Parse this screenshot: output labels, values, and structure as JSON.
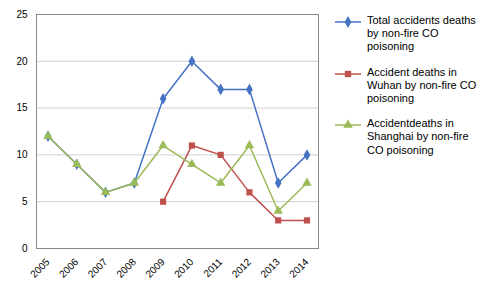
{
  "chart_data": {
    "type": "line",
    "x": [
      2005,
      2006,
      2007,
      2008,
      2009,
      2010,
      2011,
      2012,
      2013,
      2014
    ],
    "xlim": [
      2004.6,
      2014.4
    ],
    "xticks": [
      2005,
      2006,
      2007,
      2008,
      2009,
      2010,
      2011,
      2012,
      2013,
      2014
    ],
    "ylim": [
      0,
      25
    ],
    "yticks": [
      0,
      5,
      10,
      15,
      20,
      25
    ],
    "grid": true,
    "legend": "right",
    "series": [
      {
        "name": "Total accidents deaths\nby non-fire CO\npoisoning",
        "color": "#4472C4",
        "marker": "diamond",
        "values": [
          12,
          9,
          6,
          7,
          16,
          20,
          17,
          17,
          7,
          10
        ]
      },
      {
        "name": "Accident deaths in\nWuhan by non-fire CO\npoisoning",
        "color": "#C0504D",
        "marker": "square",
        "values": [
          null,
          null,
          null,
          null,
          5,
          11,
          10,
          6,
          3,
          3
        ]
      },
      {
        "name": "Accidentdeaths in\nShanghai by non-fire\nCO poisoning",
        "color": "#9BBB59",
        "marker": "triangle",
        "values": [
          12,
          9,
          6,
          7,
          11,
          9,
          7,
          11,
          4,
          7
        ]
      }
    ]
  }
}
